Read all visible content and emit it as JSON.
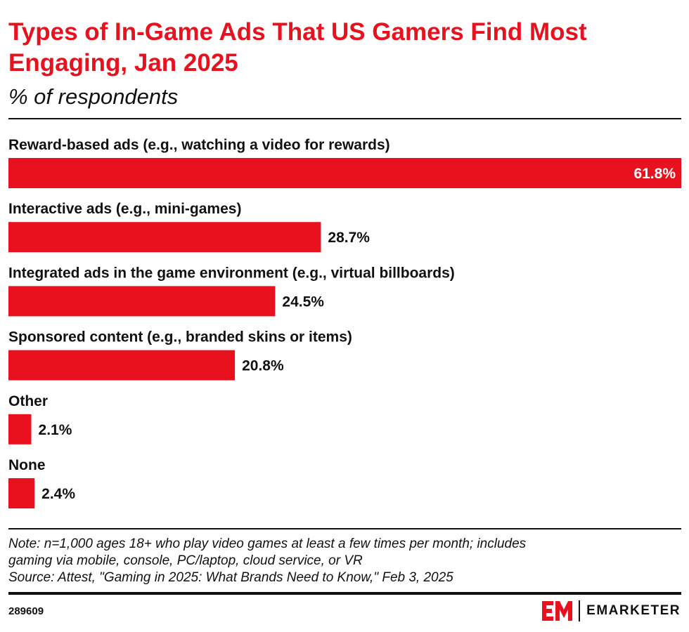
{
  "header": {
    "title": "Types of In-Game Ads That US Gamers Find Most Engaging, Jan 2025",
    "subtitle": "% of respondents"
  },
  "chart_data": {
    "type": "bar",
    "orientation": "horizontal",
    "title": "Types of In-Game Ads That US Gamers Find Most Engaging, Jan 2025",
    "subtitle": "% of respondents",
    "categories": [
      "Reward-based ads (e.g., watching a video for rewards)",
      "Interactive ads (e.g., mini-games)",
      "Integrated ads in the game environment (e.g., virtual billboards)",
      "Sponsored content (e.g., branded skins or items)",
      "Other",
      "None"
    ],
    "values": [
      61.8,
      28.7,
      24.5,
      20.8,
      2.1,
      2.4
    ],
    "value_labels": [
      "61.8%",
      "28.7%",
      "24.5%",
      "20.8%",
      "2.1%",
      "2.4%"
    ],
    "xlim": [
      0,
      61.8
    ],
    "grid": false,
    "legend": "none",
    "bar_color": "#e8121f"
  },
  "footer": {
    "note_lines": [
      "Note: n=1,000 ages 18+ who play video games at least a few times per month; includes",
      "gaming via mobile, console, PC/laptop, cloud service, or VR"
    ],
    "source": "Source: Attest, \"Gaming in 2025: What Brands Need to Know,\" Feb 3, 2025",
    "chart_id": "289609",
    "brand": "EMARKETER",
    "brand_color": "#e8121f"
  }
}
